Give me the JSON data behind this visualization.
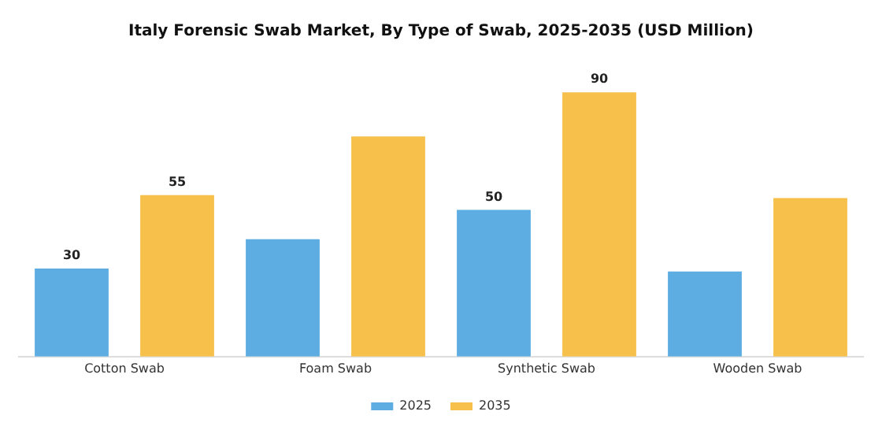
{
  "chart_data": {
    "type": "bar",
    "title": "Italy Forensic Swab Market, By Type of Swab, 2025-2035 (USD Million)",
    "categories": [
      "Cotton Swab",
      "Foam Swab",
      "Synthetic Swab",
      "Wooden Swab"
    ],
    "series": [
      {
        "name": "2025",
        "color": "#5dade2",
        "values": [
          30,
          40,
          50,
          29
        ],
        "value_labels": [
          "30",
          null,
          "50",
          null
        ]
      },
      {
        "name": "2035",
        "color": "#f7c04a",
        "values": [
          55,
          75,
          90,
          54
        ],
        "value_labels": [
          "55",
          null,
          "90",
          null
        ]
      }
    ],
    "legend": "bottom",
    "grid": false,
    "tick_labels": "x"
  }
}
